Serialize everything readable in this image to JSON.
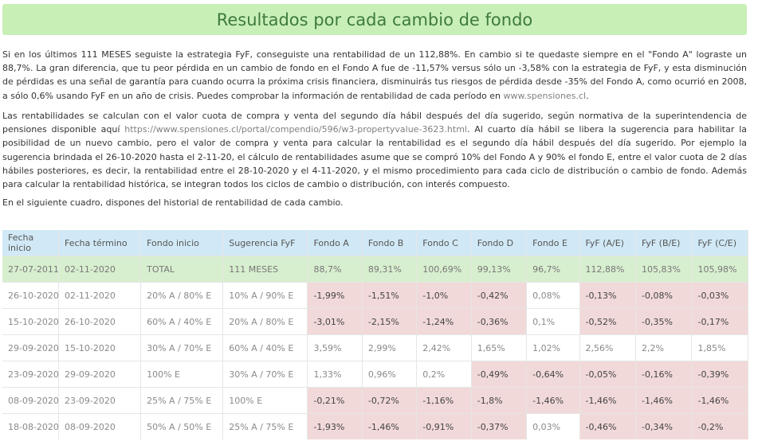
{
  "title": "Resultados por cada cambio de fondo",
  "p1": "Si en los últimos 111 MESES seguiste la estrategia FyF, conseguiste una rentabilidad de un 112,88%. En cambio si te quedaste siempre en el \"Fondo A\" lograste un 88,7%. La gran diferencia, que tu peor pérdida en un cambio de fondo en el Fondo A fue de -11,57% versus sólo un -3,58% con la estrategia de FyF, y esta disminución de pérdidas es una señal de garantía para cuando ocurra la próxima crisis financiera, disminuirás tus riesgos de pérdida desde -35% del Fondo A, como ocurrió en 2008, a sólo 0,6% usando FyF en un año de crisis. Puedes comprobar la información de rentabilidad de cada período en ",
  "p1_link": "www.spensiones.cl",
  "p1_end": ".",
  "p2_a": "Las rentabilidades se calculan con el valor cuota de compra y venta del segundo día hábil después del día sugerido, según normativa de la superintendencia de pensiones disponible aquí ",
  "p2_link": "https://www.spensiones.cl/portal/compendio/596/w3-propertyvalue-3623.html",
  "p2_b": ". Al cuarto día hábil se libera la sugerencia para habilitar la posibilidad de un nuevo cambio, pero el valor de compra y venta para calcular la rentabilidad es el segundo día hábil después del día sugerido. Por ejemplo la sugerencia brindada el 26-10-2020 hasta el 2-11-20, el cálculo de rentabilidades asume que se compró 10% del Fondo A y 90% el fondo E, entre el valor cuota de 2 días hábiles posteriores, es decir, la rentabilidad entre el 28-10-2020 y el 4-11-2020, y el mismo procedimiento para cada ciclo de distribución o cambio de fondo. Además para calcular la rentabilidad histórica, se integran todos los ciclos de cambio o distribución, con interés compuesto.",
  "p3": "En el siguiente cuadro, dispones del historial de rentabilidad de cada cambio.",
  "headers": [
    "Fecha inicio",
    "Fecha término",
    "Fondo inicio",
    "Sugerencia FyF",
    "Fondo A",
    "Fondo B",
    "Fondo C",
    "Fondo D",
    "Fondo E",
    "FyF (A/E)",
    "FyF (B/E)",
    "FyF (C/E)"
  ],
  "total_row": [
    "27-07-2011",
    "02-11-2020",
    "TOTAL",
    "111 MESES",
    "88,7%",
    "89,31%",
    "100,69%",
    "99,13%",
    "96,7%",
    "112,88%",
    "105,83%",
    "105,98%"
  ],
  "rows": [
    [
      "26-10-2020",
      "02-11-2020",
      "20% A / 80% E",
      "10% A / 90% E",
      "-1,99%",
      "-1,51%",
      "-1,0%",
      "-0,42%",
      "0,08%",
      "-0,13%",
      "-0,08%",
      "-0,03%"
    ],
    [
      "15-10-2020",
      "26-10-2020",
      "60% A / 40% E",
      "20% A / 80% E",
      "-3,01%",
      "-2,15%",
      "-1,24%",
      "-0,36%",
      "0,1%",
      "-0,52%",
      "-0,35%",
      "-0,17%"
    ],
    [
      "29-09-2020",
      "15-10-2020",
      "30% A / 70% E",
      "60% A / 40% E",
      "3,59%",
      "2,99%",
      "2,42%",
      "1,65%",
      "1,02%",
      "2,56%",
      "2,2%",
      "1,85%"
    ],
    [
      "23-09-2020",
      "29-09-2020",
      "100% E",
      "30% A / 70% E",
      "1,33%",
      "0,96%",
      "0,2%",
      "-0,49%",
      "-0,64%",
      "-0,05%",
      "-0,16%",
      "-0,39%"
    ],
    [
      "08-09-2020",
      "23-09-2020",
      "25% A / 75% E",
      "100% E",
      "-0,21%",
      "-0,72%",
      "-1,16%",
      "-1,8%",
      "-1,46%",
      "-1,46%",
      "-1,46%",
      "-1,46%"
    ],
    [
      "18-08-2020",
      "08-09-2020",
      "50% A / 50% E",
      "25% A / 75% E",
      "-1,93%",
      "-1,46%",
      "-0,91%",
      "-0,37%",
      "0,03%",
      "-0,46%",
      "-0,34%",
      "-0,2%"
    ]
  ],
  "colors": {
    "banner": "#c8efb6",
    "header": "#d1e9f6",
    "total": "#d8efcf",
    "negative": "#f2d9d9"
  }
}
